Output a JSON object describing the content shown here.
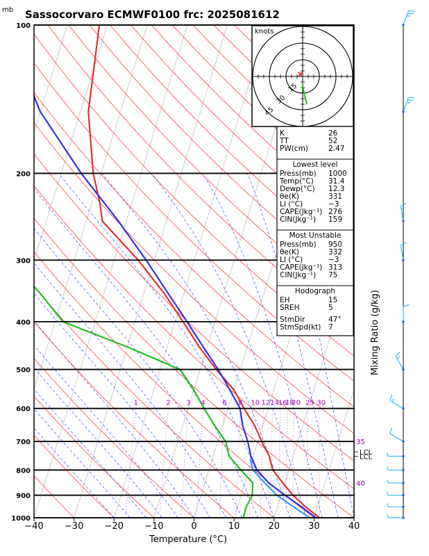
{
  "chart_data": {
    "type": "line",
    "title": "Sassocorvaro ECMWF0100 frc: 2025081612",
    "pressure_unit_label": "mb",
    "xlabel": "Temperature (°C)",
    "right_label": "Mixing Ratio (g/kg)",
    "xlim": [
      -40,
      40
    ],
    "ylim": [
      1000,
      100
    ],
    "x_ticks": [
      "−40",
      "−30",
      "−20",
      "−10",
      "0",
      "10",
      "20",
      "30",
      "40"
    ],
    "pressure_levels": [
      {
        "p": 100,
        "label": "100"
      },
      {
        "p": 200,
        "label": "200"
      },
      {
        "p": 300,
        "label": "300"
      },
      {
        "p": 400,
        "label": "400"
      },
      {
        "p": 500,
        "label": "500"
      },
      {
        "p": 600,
        "label": "600"
      },
      {
        "p": 700,
        "label": "700"
      },
      {
        "p": 800,
        "label": "800"
      },
      {
        "p": 900,
        "label": "900"
      },
      {
        "p": 1000,
        "label": "1000"
      }
    ],
    "mixing_ratio_labels": [
      {
        "w": 1,
        "label": "1"
      },
      {
        "w": 2,
        "label": "2"
      },
      {
        "w": 3,
        "label": "3"
      },
      {
        "w": 4,
        "label": "4"
      },
      {
        "w": 6,
        "label": "6"
      },
      {
        "w": 8,
        "label": "8"
      },
      {
        "w": 10,
        "label": "10"
      },
      {
        "w": 12,
        "label": "12"
      },
      {
        "w": 14,
        "label": "14"
      },
      {
        "w": 16,
        "label": "16"
      },
      {
        "w": 18,
        "label": "18"
      },
      {
        "w": 20,
        "label": "20"
      },
      {
        "w": 25,
        "label": "25"
      },
      {
        "w": 30,
        "label": "30"
      }
    ],
    "theta_e_labels": [
      {
        "p": 700,
        "label": "35"
      },
      {
        "p": 850,
        "label": "40"
      }
    ],
    "lcl_labels": [
      {
        "p": 735,
        "label": "LCL"
      },
      {
        "p": 750,
        "label": "LCL"
      }
    ],
    "series": [
      {
        "key": "temperature",
        "color": "#e03030",
        "points": [
          [
            1000,
            31.4
          ],
          [
            950,
            27
          ],
          [
            900,
            23
          ],
          [
            850,
            19.5
          ],
          [
            800,
            16
          ],
          [
            750,
            14
          ],
          [
            700,
            11
          ],
          [
            650,
            8
          ],
          [
            600,
            4
          ],
          [
            550,
            0
          ],
          [
            500,
            -6
          ],
          [
            450,
            -12
          ],
          [
            400,
            -18
          ],
          [
            350,
            -25
          ],
          [
            300,
            -34
          ],
          [
            250,
            -46
          ],
          [
            230,
            -48
          ],
          [
            200,
            -52
          ],
          [
            150,
            -58
          ],
          [
            100,
            -62
          ]
        ]
      },
      {
        "key": "dewpoint",
        "color": "#20c020",
        "points": [
          [
            1000,
            12.3
          ],
          [
            950,
            12.2
          ],
          [
            900,
            12.8
          ],
          [
            850,
            12
          ],
          [
            800,
            8
          ],
          [
            750,
            4
          ],
          [
            700,
            2
          ],
          [
            650,
            -2
          ],
          [
            600,
            -6
          ],
          [
            550,
            -10
          ],
          [
            500,
            -15
          ],
          [
            450,
            -30
          ],
          [
            400,
            -48
          ],
          [
            350,
            -56
          ],
          [
            300,
            -66
          ],
          [
            250,
            -76
          ],
          [
            200,
            -84
          ],
          [
            150,
            -95
          ],
          [
            100,
            -106
          ]
        ]
      },
      {
        "key": "parcel",
        "color": "#3030e0",
        "points": [
          [
            1000,
            30.5
          ],
          [
            950,
            26
          ],
          [
            900,
            21
          ],
          [
            850,
            16
          ],
          [
            800,
            12
          ],
          [
            760,
            10
          ],
          [
            750,
            9.4
          ],
          [
            700,
            7.5
          ],
          [
            650,
            5
          ],
          [
            600,
            3
          ],
          [
            550,
            -1
          ],
          [
            500,
            -5.5
          ],
          [
            450,
            -11
          ],
          [
            400,
            -17
          ],
          [
            350,
            -24
          ],
          [
            300,
            -32
          ],
          [
            250,
            -42
          ],
          [
            200,
            -55
          ],
          [
            150,
            -70
          ],
          [
            110,
            -82
          ]
        ]
      },
      {
        "key": "parcel_virtual",
        "color": "#30a0f0",
        "points": [
          [
            1000,
            29
          ],
          [
            950,
            24
          ],
          [
            900,
            19
          ],
          [
            850,
            15
          ],
          [
            800,
            11
          ],
          [
            760,
            9.5
          ]
        ]
      }
    ],
    "wind_barbs": [
      {
        "p": 100,
        "dir": 20,
        "spd": 25
      },
      {
        "p": 150,
        "dir": 20,
        "spd": 25
      },
      {
        "p": 250,
        "dir": 350,
        "spd": 15
      },
      {
        "p": 300,
        "dir": 350,
        "spd": 10
      },
      {
        "p": 400,
        "dir": 0,
        "spd": 10
      },
      {
        "p": 500,
        "dir": 330,
        "spd": 15
      },
      {
        "p": 600,
        "dir": 300,
        "spd": 15
      },
      {
        "p": 700,
        "dir": 300,
        "spd": 10
      },
      {
        "p": 750,
        "dir": 270,
        "spd": 5
      },
      {
        "p": 800,
        "dir": 270,
        "spd": 5
      },
      {
        "p": 850,
        "dir": 270,
        "spd": 5
      },
      {
        "p": 900,
        "dir": 270,
        "spd": 5
      },
      {
        "p": 950,
        "dir": 270,
        "spd": 5
      },
      {
        "p": 1000,
        "dir": 270,
        "spd": 5
      }
    ],
    "hodograph": {
      "unit_label": "knots",
      "rings": [
        {
          "value": 15,
          "label": "15"
        },
        {
          "value": 30,
          "label": "30"
        },
        {
          "value": 45,
          "label": "45"
        }
      ],
      "trace": [
        [
          0,
          -3
        ],
        [
          0.5,
          -6
        ],
        [
          1,
          -8
        ],
        [
          1.5,
          -10
        ]
      ],
      "storm_motion": [
        -2,
        2
      ]
    },
    "indices": {
      "top": [
        {
          "k": "K",
          "v": "26"
        },
        {
          "k": "TT",
          "v": "52"
        },
        {
          "k": "PW(cm)",
          "v": "2.47"
        }
      ],
      "lowest_header": "Lowest level",
      "lowest": [
        {
          "k": "Press(mb)",
          "v": "1000"
        },
        {
          "k": "Temp(°C)",
          "v": "31.4"
        },
        {
          "k": "Dewp(°C)",
          "v": "12.3"
        },
        {
          "k": "θe(K)",
          "v": "331"
        },
        {
          "k": "LI (°C)",
          "v": "−3"
        },
        {
          "k": "CAPE(Jkg⁻¹)",
          "v": "276"
        },
        {
          "k": "CIN(Jkg⁻¹)",
          "v": "159"
        }
      ],
      "unstable_header": "Most Unstable",
      "unstable": [
        {
          "k": "Press(mb)",
          "v": "950"
        },
        {
          "k": "θe(K)",
          "v": "332"
        },
        {
          "k": "LI (°C)",
          "v": "−3"
        },
        {
          "k": "CAPE(Jkg⁻¹)",
          "v": "313"
        },
        {
          "k": "CIN(Jkg⁻¹)",
          "v": "75"
        }
      ],
      "hodo_header": "Hodograph",
      "hodo_a": [
        {
          "k": "EH",
          "v": "15"
        },
        {
          "k": "SREH",
          "v": "5"
        }
      ],
      "hodo_b": [
        {
          "k": "StmDir",
          "v": "47°"
        },
        {
          "k": "StmSpd(kt)",
          "v": "7"
        }
      ]
    }
  },
  "colors": {
    "isotherm": "#c0c0c0",
    "dry_adiabat": "#ff4040",
    "moist_adiabat": "#3050ff",
    "mixing_ratio": "#c040c0",
    "frame": "#000000",
    "barb": "#30c0f0"
  }
}
